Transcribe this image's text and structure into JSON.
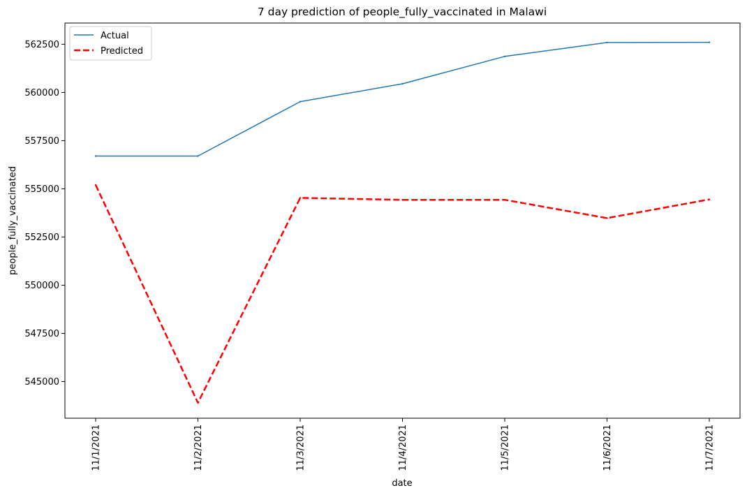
{
  "chart_data": {
    "type": "line",
    "title": "7 day prediction of people_fully_vaccinated in Malawi",
    "xlabel": "date",
    "ylabel": "people_fully_vaccinated",
    "categories": [
      "11/1/2021",
      "11/2/2021",
      "11/3/2021",
      "11/4/2021",
      "11/5/2021",
      "11/6/2021",
      "11/7/2021"
    ],
    "series": [
      {
        "name": "Actual",
        "values": [
          556700,
          556700,
          559520,
          560450,
          561870,
          562590,
          562600
        ],
        "color": "#1f77b4",
        "style": "solid"
      },
      {
        "name": "Predicted",
        "values": [
          555200,
          543900,
          554530,
          554430,
          554430,
          553480,
          554450
        ],
        "color": "#ff0000",
        "style": "dashed"
      }
    ],
    "yticks": [
      545000,
      547500,
      550000,
      552500,
      555000,
      557500,
      560000,
      562500
    ],
    "ylim": [
      543100,
      563600
    ],
    "grid": false,
    "legend_position": "top-left"
  }
}
